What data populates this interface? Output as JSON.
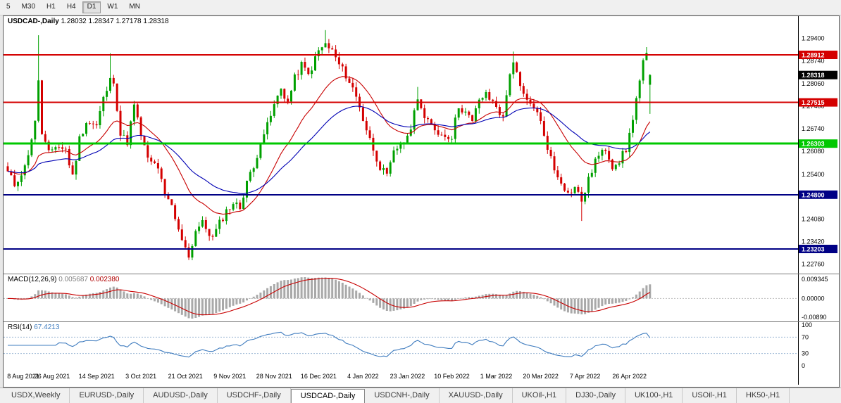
{
  "toolbar": {
    "periods": [
      {
        "label": "5",
        "active": false
      },
      {
        "label": "M30",
        "active": false
      },
      {
        "label": "H1",
        "active": false
      },
      {
        "label": "H4",
        "active": false
      },
      {
        "label": "D1",
        "active": true
      },
      {
        "label": "W1",
        "active": false
      },
      {
        "label": "MN",
        "active": false
      }
    ]
  },
  "chart": {
    "title": {
      "symbol": "USDCAD-,Daily",
      "open": "1.28032",
      "high": "1.28347",
      "low": "1.27178",
      "close": "1.28318"
    },
    "ylim": [
      1.2248,
      1.3005
    ],
    "axis_labels": [
      "1.29400",
      "1.28740",
      "1.28060",
      "1.27400",
      "1.26740",
      "1.26080",
      "1.25400",
      "1.24740",
      "1.24080",
      "1.23420",
      "1.22760"
    ],
    "hlines": [
      {
        "price": 1.28912,
        "label": "1.28912",
        "color": "#d40000",
        "width": 2
      },
      {
        "price": 1.27515,
        "label": "1.27515",
        "color": "#d40000",
        "width": 2
      },
      {
        "price": 1.26303,
        "label": "1.26303",
        "color": "#00c800",
        "width": 3
      },
      {
        "price": 1.248,
        "label": "1.24800",
        "color": "#000085",
        "width": 2
      },
      {
        "price": 1.23203,
        "label": "1.23203",
        "color": "#000085",
        "width": 2
      }
    ],
    "current_price_tag": {
      "label": "1.28318",
      "color": "#000000"
    },
    "colors": {
      "up": "#00a000",
      "down": "#d40000",
      "ma_fast": "#c80000",
      "ma_slow": "#0000b4"
    },
    "ma_periods": {
      "fast": 20,
      "slow": 44
    },
    "candle_count": 189,
    "price_path": [
      [
        0,
        1.2545
      ],
      [
        2,
        1.251
      ],
      [
        5,
        1.256
      ],
      [
        8,
        1.269
      ],
      [
        9,
        1.282
      ],
      [
        10,
        1.2655
      ],
      [
        12,
        1.26
      ],
      [
        14,
        1.2625
      ],
      [
        17,
        1.2612
      ],
      [
        19,
        1.2532
      ],
      [
        21,
        1.2645
      ],
      [
        23,
        1.2695
      ],
      [
        26,
        1.2682
      ],
      [
        28,
        1.2762
      ],
      [
        30,
        1.2815
      ],
      [
        31,
        1.2818
      ],
      [
        33,
        1.2656
      ],
      [
        35,
        1.2636
      ],
      [
        37,
        1.2742
      ],
      [
        39,
        1.2656
      ],
      [
        41,
        1.2582
      ],
      [
        44,
        1.2562
      ],
      [
        46,
        1.2472
      ],
      [
        48,
        1.2446
      ],
      [
        50,
        1.2372
      ],
      [
        52,
        1.2332
      ],
      [
        53,
        1.2295
      ],
      [
        55,
        1.2376
      ],
      [
        57,
        1.2396
      ],
      [
        60,
        1.2352
      ],
      [
        62,
        1.2396
      ],
      [
        64,
        1.2432
      ],
      [
        66,
        1.2456
      ],
      [
        68,
        1.2442
      ],
      [
        70,
        1.2522
      ],
      [
        72,
        1.2556
      ],
      [
        74,
        1.2642
      ],
      [
        76,
        1.2682
      ],
      [
        78,
        1.2742
      ],
      [
        80,
        1.2792
      ],
      [
        82,
        1.2752
      ],
      [
        84,
        1.2822
      ],
      [
        86,
        1.2862
      ],
      [
        88,
        1.2832
      ],
      [
        91,
        1.2902
      ],
      [
        93,
        1.2922
      ],
      [
        95,
        1.2902
      ],
      [
        97,
        1.2862
      ],
      [
        99,
        1.2832
      ],
      [
        101,
        1.2792
      ],
      [
        103,
        1.2742
      ],
      [
        104,
        1.2702
      ],
      [
        106,
        1.2642
      ],
      [
        109,
        1.2562
      ],
      [
        111,
        1.2532
      ],
      [
        113,
        1.2602
      ],
      [
        115,
        1.2632
      ],
      [
        117,
        1.2642
      ],
      [
        119,
        1.2722
      ],
      [
        120,
        1.2772
      ],
      [
        122,
        1.2702
      ],
      [
        124,
        1.2682
      ],
      [
        127,
        1.2656
      ],
      [
        130,
        1.2652
      ],
      [
        132,
        1.2742
      ],
      [
        134,
        1.2722
      ],
      [
        136,
        1.2692
      ],
      [
        138,
        1.2762
      ],
      [
        140,
        1.2772
      ],
      [
        143,
        1.2742
      ],
      [
        145,
        1.2702
      ],
      [
        147,
        1.2842
      ],
      [
        148,
        1.2872
      ],
      [
        150,
        1.2792
      ],
      [
        152,
        1.2752
      ],
      [
        154,
        1.2742
      ],
      [
        156,
        1.2692
      ],
      [
        158,
        1.2622
      ],
      [
        160,
        1.2552
      ],
      [
        162,
        1.2522
      ],
      [
        164,
        1.2482
      ],
      [
        166,
        1.2502
      ],
      [
        168,
        1.2462
      ],
      [
        170,
        1.2522
      ],
      [
        172,
        1.2582
      ],
      [
        174,
        1.2602
      ],
      [
        175,
        1.2616
      ],
      [
        177,
        1.2566
      ],
      [
        179,
        1.2582
      ],
      [
        181,
        1.2612
      ],
      [
        182,
        1.2656
      ],
      [
        184,
        1.2762
      ],
      [
        186,
        1.2866
      ],
      [
        187,
        1.2892
      ],
      [
        188,
        1.2832
      ]
    ],
    "spikes": [
      {
        "i": 9,
        "high": 1.2949
      },
      {
        "i": 30,
        "high": 1.2896
      },
      {
        "i": 53,
        "low": 1.2288
      },
      {
        "i": 93,
        "high": 1.2964
      },
      {
        "i": 120,
        "high": 1.2797
      },
      {
        "i": 148,
        "high": 1.2901
      },
      {
        "i": 168,
        "low": 1.2403
      },
      {
        "i": 187,
        "high": 1.2914
      }
    ]
  },
  "macd": {
    "label": "MACD(12,26,9)",
    "main_value": "0.005687",
    "signal_value": "0.002380",
    "axis_labels": {
      "max": "0.009345",
      "zero": "0.00000",
      "min": "-0.00890"
    },
    "params": {
      "fast": 12,
      "slow": 26,
      "signal": 9
    },
    "colors": {
      "histogram": "#a9a9a9",
      "signal": "#c80000"
    }
  },
  "rsi": {
    "label": "RSI(14)",
    "value": "67.4213",
    "period": 14,
    "axis_labels": [
      "100",
      "70",
      "30",
      "0"
    ],
    "levels": [
      70,
      30
    ],
    "color": "#3f7cbf",
    "level_color": "#9bb7d4"
  },
  "time_axis": {
    "labels": [
      {
        "text": "8 Aug 2021",
        "i": 0
      },
      {
        "text": "26 Aug 2021",
        "i": 13
      },
      {
        "text": "14 Sep 2021",
        "i": 26
      },
      {
        "text": "3 Oct 2021",
        "i": 39
      },
      {
        "text": "21 Oct 2021",
        "i": 52
      },
      {
        "text": "9 Nov 2021",
        "i": 65
      },
      {
        "text": "28 Nov 2021",
        "i": 78
      },
      {
        "text": "16 Dec 2021",
        "i": 91
      },
      {
        "text": "4 Jan 2022",
        "i": 104
      },
      {
        "text": "23 Jan 2022",
        "i": 117
      },
      {
        "text": "10 Feb 2022",
        "i": 130
      },
      {
        "text": "1 Mar 2022",
        "i": 143
      },
      {
        "text": "20 Mar 2022",
        "i": 156
      },
      {
        "text": "7 Apr 2022",
        "i": 169
      },
      {
        "text": "26 Apr 2022",
        "i": 182
      }
    ]
  },
  "tabs": [
    {
      "label": "USDX,Weekly",
      "active": false
    },
    {
      "label": "EURUSD-,Daily",
      "active": false
    },
    {
      "label": "AUDUSD-,Daily",
      "active": false
    },
    {
      "label": "USDCHF-,Daily",
      "active": false
    },
    {
      "label": "USDCAD-,Daily",
      "active": true
    },
    {
      "label": "USDCNH-,Daily",
      "active": false
    },
    {
      "label": "XAUUSD-,Daily",
      "active": false
    },
    {
      "label": "UKOil-,H1",
      "active": false
    },
    {
      "label": "DJ30-,Daily",
      "active": false
    },
    {
      "label": "UK100-,H1",
      "active": false
    },
    {
      "label": "USOil-,H1",
      "active": false
    },
    {
      "label": "HK50-,H1",
      "active": false
    }
  ]
}
